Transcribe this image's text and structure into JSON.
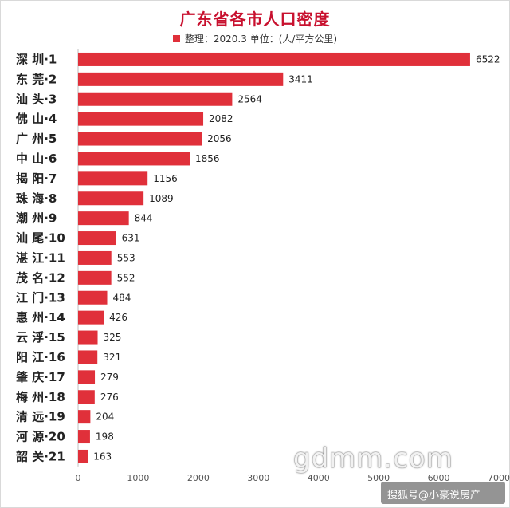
{
  "chart_data": {
    "type": "bar",
    "orientation": "horizontal",
    "title": "广东省各市人口密度",
    "legend": "整理：2020.3 单位：(人/平方公里)",
    "legend_position": "top",
    "categories": [
      "深 圳·1",
      "东 莞·2",
      "汕 头·3",
      "佛 山·4",
      "广 州·5",
      "中 山·6",
      "揭 阳·7",
      "珠 海·8",
      "潮 州·9",
      "汕 尾·10",
      "湛 江·11",
      "茂 名·12",
      "江 门·13",
      "惠 州·14",
      "云 浮·15",
      "阳 江·16",
      "肇 庆·17",
      "梅 州·18",
      "清 远·19",
      "河 源·20",
      "韶 关·21"
    ],
    "values": [
      6522,
      3411,
      2564,
      2082,
      2056,
      1856,
      1156,
      1089,
      844,
      631,
      553,
      552,
      484,
      426,
      325,
      321,
      279,
      276,
      204,
      198,
      163
    ],
    "xlim": [
      0,
      7000
    ],
    "x_ticks": [
      "0",
      "1000",
      "2000",
      "3000",
      "4000",
      "5000",
      "6000",
      "7000"
    ],
    "grid": false,
    "bar_color": "#e0303a"
  },
  "watermark": "gdmm.com",
  "footer": "搜狐号@小豪说房产"
}
